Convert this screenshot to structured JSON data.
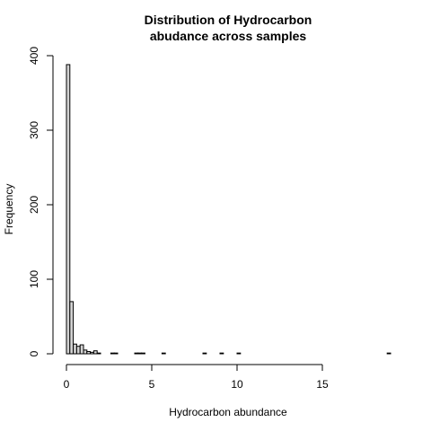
{
  "chart_data": {
    "type": "bar",
    "title_lines": [
      "Distribution of Hydrocarbon",
      "abudance across samples"
    ],
    "xlabel": "Hydrocarbon abundance",
    "ylabel": "Frequency",
    "xlim": [
      0,
      19
    ],
    "ylim": [
      0,
      400
    ],
    "x_ticks": [
      0,
      5,
      10,
      15
    ],
    "y_ticks": [
      0,
      100,
      200,
      300,
      400
    ],
    "x_tick_labels": [
      "0",
      "5",
      "10",
      "15"
    ],
    "y_tick_labels": [
      "0",
      "100",
      "200",
      "300",
      "400"
    ],
    "bin_width": 0.2,
    "bin_edges_start": [
      0,
      0.2,
      0.4,
      0.6,
      0.8,
      1.0,
      1.2,
      1.4,
      1.6,
      1.8,
      2.0,
      2.2,
      2.4,
      2.6,
      2.8,
      3.0,
      3.2,
      3.4,
      3.6,
      3.8,
      4.0,
      4.2,
      4.4,
      4.6,
      4.8,
      5.0,
      5.2,
      5.4,
      5.6,
      5.8,
      6.0,
      6.2,
      6.4,
      6.6,
      6.8,
      7.0,
      7.2,
      7.4,
      7.6,
      7.8,
      8.0,
      8.2,
      8.4,
      8.6,
      8.8,
      9.0,
      9.2,
      9.4,
      9.6,
      9.8,
      10.0,
      10.2,
      10.4,
      10.6,
      10.8,
      11.0,
      11.2,
      11.4,
      11.6,
      11.8,
      12.0,
      12.2,
      12.4,
      12.6,
      12.8,
      13.0,
      13.2,
      13.4,
      13.6,
      13.8,
      14.0,
      14.2,
      14.4,
      14.6,
      14.8,
      15.0,
      15.2,
      15.4,
      15.6,
      15.8,
      16.0,
      16.2,
      16.4,
      16.6,
      16.8,
      17.0,
      17.2,
      17.4,
      17.6,
      17.8,
      18.0,
      18.2,
      18.4,
      18.6,
      18.8
    ],
    "values": [
      388,
      70,
      13,
      10,
      12,
      5,
      3,
      2,
      4,
      1,
      0,
      0,
      0,
      1,
      1,
      0,
      0,
      0,
      0,
      0,
      1,
      1,
      1,
      0,
      0,
      0,
      0,
      0,
      1,
      0,
      0,
      0,
      0,
      0,
      0,
      0,
      0,
      0,
      0,
      0,
      1,
      0,
      0,
      0,
      0,
      1,
      0,
      0,
      0,
      0,
      1,
      0,
      0,
      0,
      0,
      0,
      0,
      0,
      0,
      0,
      0,
      0,
      0,
      0,
      0,
      0,
      0,
      0,
      0,
      0,
      0,
      0,
      0,
      0,
      0,
      0,
      0,
      0,
      0,
      0,
      0,
      0,
      0,
      0,
      0,
      0,
      0,
      0,
      0,
      0,
      0,
      0,
      0,
      0,
      1
    ],
    "bar_fill": "#d3d3d3",
    "bar_stroke": "#000000",
    "grid": false,
    "legend": "none"
  }
}
